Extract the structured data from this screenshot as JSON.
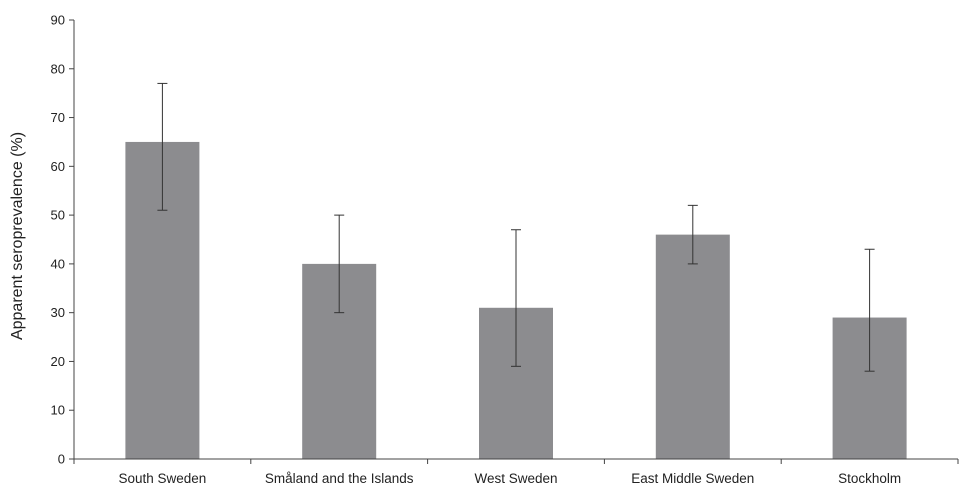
{
  "chart_data": {
    "type": "bar",
    "title": "",
    "xlabel": "",
    "ylabel": "Apparent seroprevalence (%)",
    "ylim": [
      0,
      90
    ],
    "yticks": [
      "0",
      "10",
      "20",
      "30",
      "40",
      "50",
      "60",
      "70",
      "80",
      "90"
    ],
    "categories": [
      "South Sweden",
      "Småland and the Islands",
      "West Sweden",
      "East Middle Sweden",
      "Stockholm"
    ],
    "values": [
      65,
      40,
      31,
      46,
      29
    ],
    "error_low": [
      51,
      30,
      19,
      40,
      18
    ],
    "error_high": [
      77,
      50,
      47,
      52,
      43
    ],
    "grid": false,
    "legend": "none",
    "bar_color": "#8c8c8f"
  }
}
